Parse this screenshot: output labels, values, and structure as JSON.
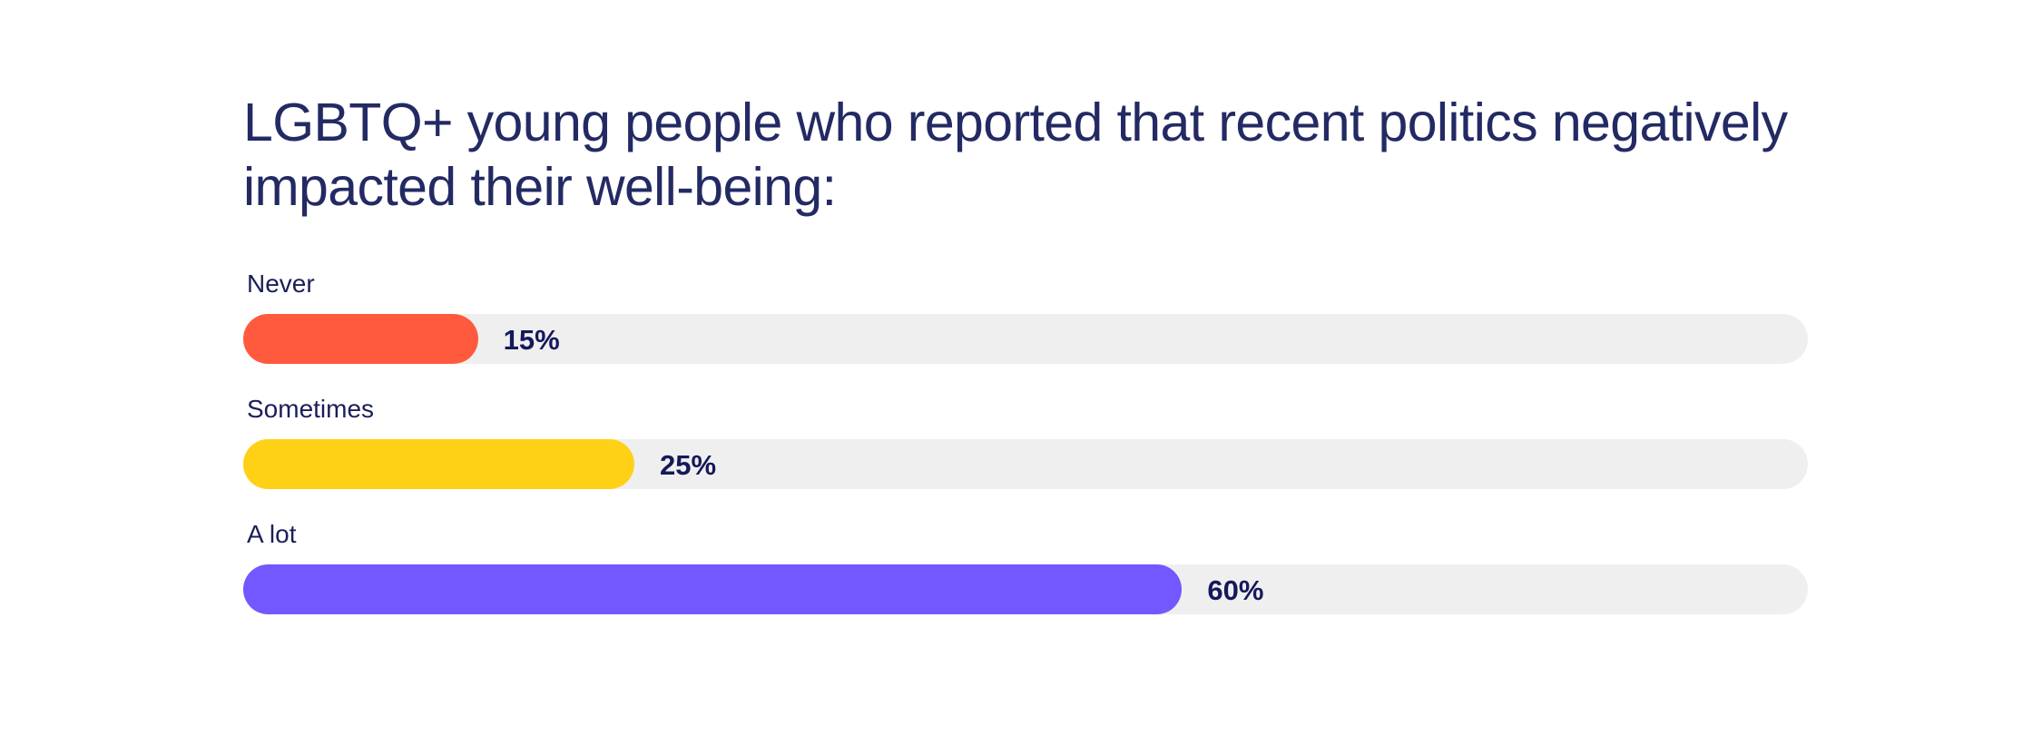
{
  "chart_data": {
    "type": "bar",
    "orientation": "horizontal",
    "title": "LGBTQ+ young people who reported that recent politics negatively impacted their well-being:",
    "categories": [
      "Never",
      "Sometimes",
      "A lot"
    ],
    "values": [
      15,
      25,
      60
    ],
    "value_labels": [
      "15%",
      "25%",
      "60%"
    ],
    "unit": "%",
    "xlim": [
      0,
      100
    ],
    "grid": false,
    "legend": "none",
    "colors": [
      "#ff5a3d",
      "#ffd116",
      "#7358ff"
    ],
    "track_color": "#efefef"
  }
}
